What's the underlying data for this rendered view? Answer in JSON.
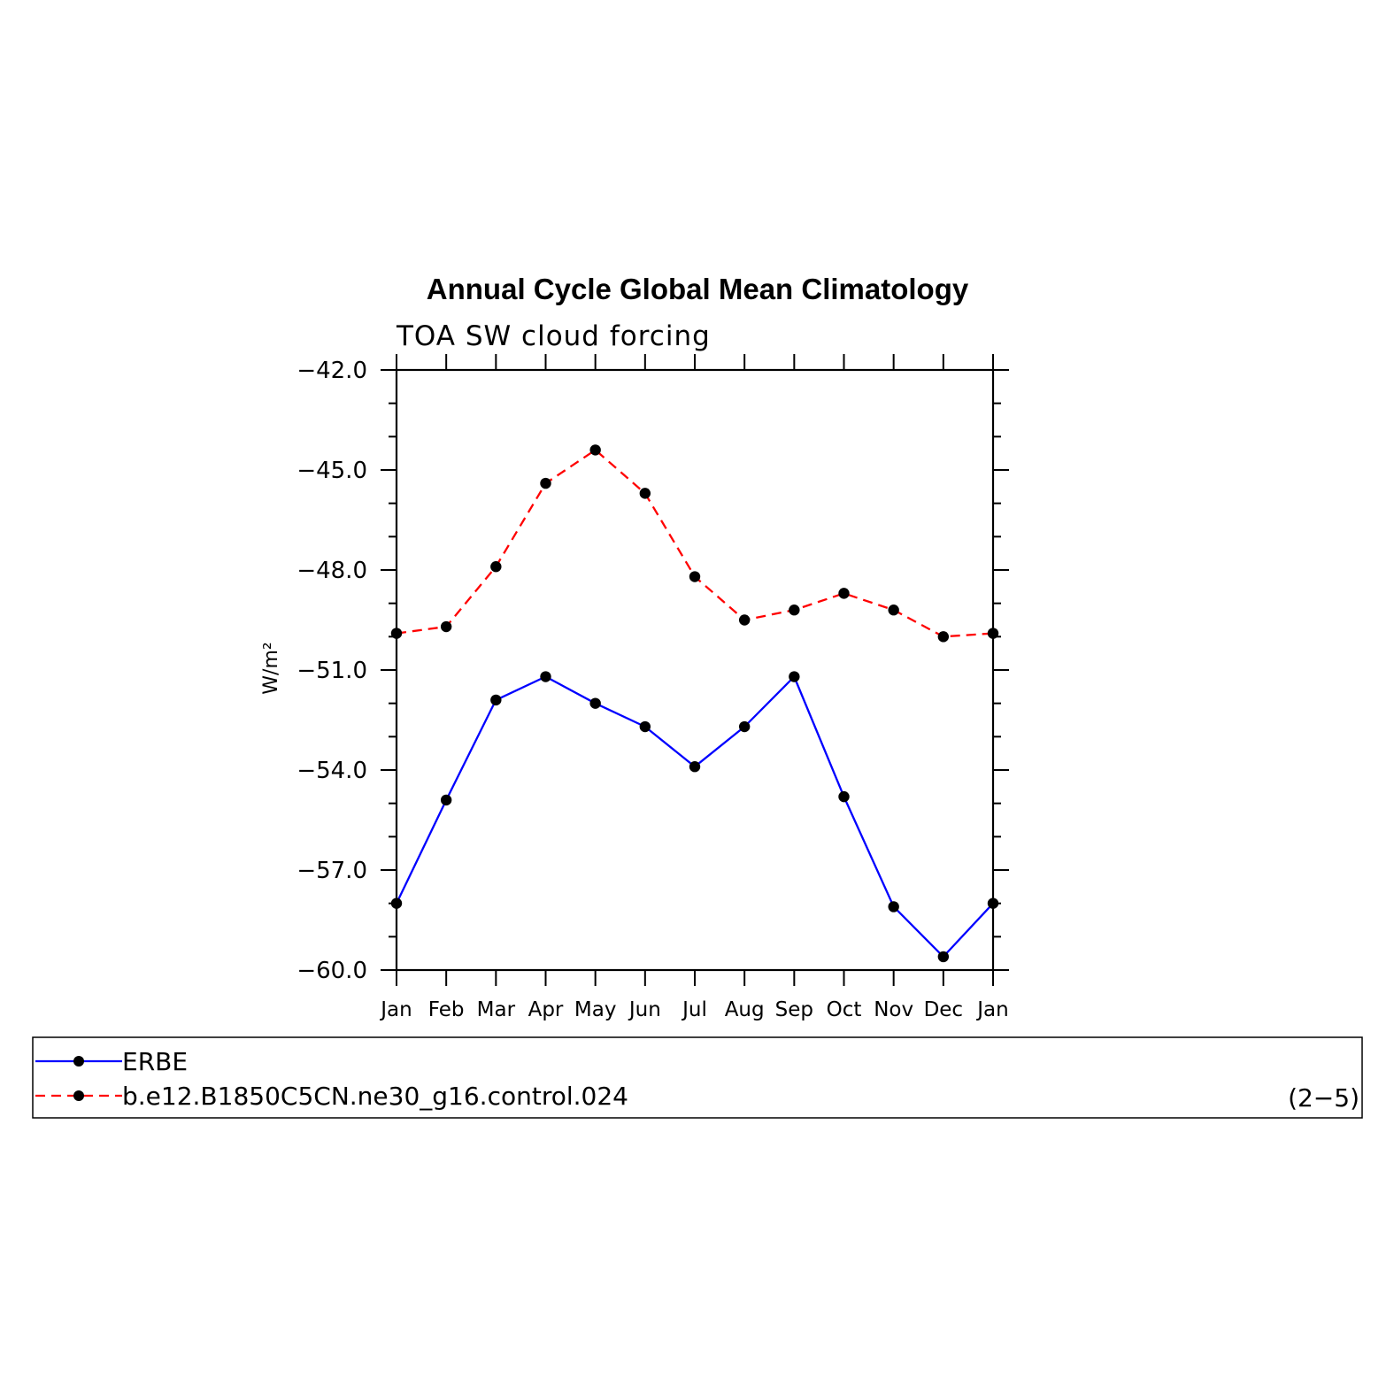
{
  "chart_data": {
    "type": "line",
    "title": "Annual Cycle Global Mean Climatology",
    "subtitle": "TOA SW cloud forcing",
    "ylabel": "W/m²",
    "ylim": [
      -60.0,
      -42.0
    ],
    "yticks": [
      -42.0,
      -45.0,
      -48.0,
      -51.0,
      -54.0,
      -57.0,
      -60.0
    ],
    "ytick_labels": [
      "−42.0",
      "−45.0",
      "−48.0",
      "−51.0",
      "−54.0",
      "−57.0",
      "−60.0"
    ],
    "categories": [
      "Jan",
      "Feb",
      "Mar",
      "Apr",
      "May",
      "Jun",
      "Jul",
      "Aug",
      "Sep",
      "Oct",
      "Nov",
      "Dec",
      "Jan"
    ],
    "series": [
      {
        "name": "ERBE",
        "color": "#0000ff",
        "dash": "solid",
        "values": [
          -58.0,
          -54.9,
          -51.9,
          -51.2,
          -52.0,
          -52.7,
          -53.9,
          -52.7,
          -51.2,
          -54.8,
          -58.1,
          -59.6,
          -58.0
        ]
      },
      {
        "name": "b.e12.B1850C5CN.ne30_g16.control.024",
        "color": "#ff0000",
        "dash": "dashed",
        "values": [
          -49.9,
          -49.7,
          -47.9,
          -45.4,
          -44.4,
          -45.7,
          -48.2,
          -49.5,
          -49.2,
          -48.7,
          -49.2,
          -50.0,
          -49.9
        ]
      }
    ],
    "marker_color": "#000000",
    "grid": false,
    "legend_position": "bottom"
  },
  "panel_id": "(2−5)"
}
